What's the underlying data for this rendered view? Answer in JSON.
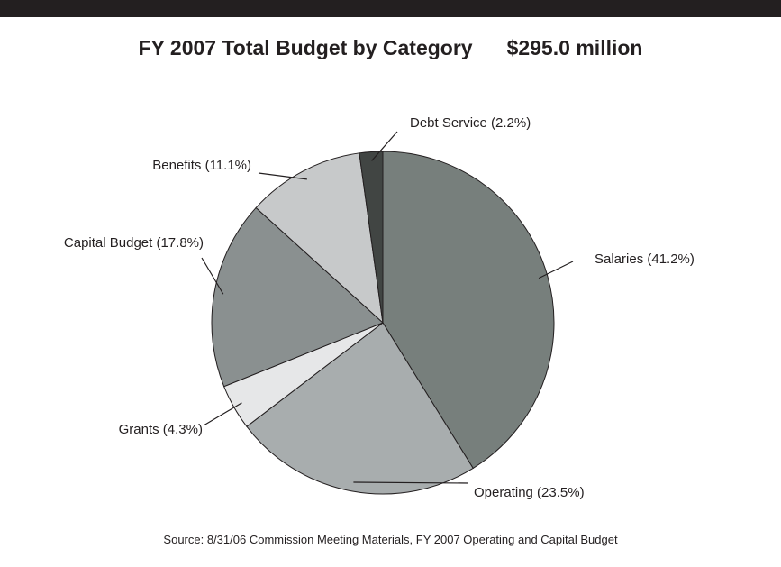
{
  "chart_data": {
    "type": "pie",
    "title": "FY 2007 Total Budget by Category",
    "total_label": "$295.0 million",
    "source": "Source: 8/31/06 Commission Meeting Materials, FY 2007 Operating and Capital Budget",
    "slices": [
      {
        "label": "Salaries (41.2%)",
        "category": "Salaries",
        "value": 41.2,
        "color": "#777f7c"
      },
      {
        "label": "Operating (23.5%)",
        "category": "Operating",
        "value": 23.5,
        "color": "#a8adae"
      },
      {
        "label": "Grants (4.3%)",
        "category": "Grants",
        "value": 4.3,
        "color": "#e6e7e8"
      },
      {
        "label": "Capital Budget (17.8%)",
        "category": "Capital Budget",
        "value": 17.8,
        "color": "#8a9090"
      },
      {
        "label": "Benefits (11.1%)",
        "category": "Benefits",
        "value": 11.1,
        "color": "#c7c9ca"
      },
      {
        "label": "Debt Service (2.2%)",
        "category": "Debt Service",
        "value": 2.2,
        "color": "#414543"
      }
    ]
  }
}
